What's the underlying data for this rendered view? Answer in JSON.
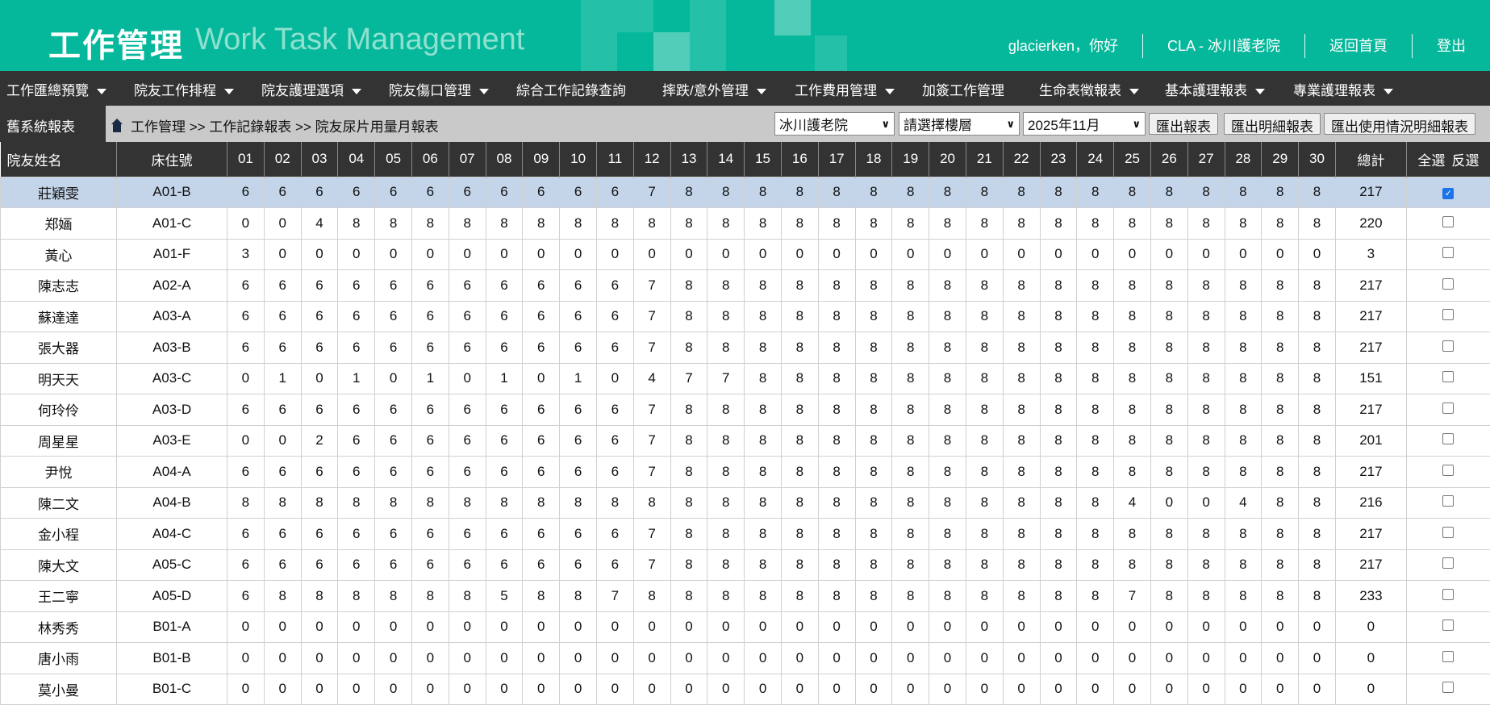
{
  "header": {
    "title_cn": "工作管理",
    "title_en": "Work Task Management",
    "greeting": "glacierken，你好",
    "facility": "CLA - 冰川護老院",
    "home": "返回首頁",
    "logout": "登出",
    "brand_color": "#06b89b"
  },
  "nav": [
    {
      "label": "工作匯總預覽",
      "dropdown": true
    },
    {
      "label": "院友工作排程",
      "dropdown": true
    },
    {
      "label": "院友護理選項",
      "dropdown": true
    },
    {
      "label": "院友傷口管理",
      "dropdown": true
    },
    {
      "label": "綜合工作記錄查詢",
      "dropdown": false
    },
    {
      "label": "摔跌/意外管理",
      "dropdown": true
    },
    {
      "label": "工作費用管理",
      "dropdown": true
    },
    {
      "label": "加簽工作管理",
      "dropdown": false
    },
    {
      "label": "生命表徵報表",
      "dropdown": true
    },
    {
      "label": "基本護理報表",
      "dropdown": true
    },
    {
      "label": "專業護理報表",
      "dropdown": true
    }
  ],
  "toolbar": {
    "old_system": "舊系統報表",
    "breadcrumb": "工作管理 >> 工作記錄報表 >> 院友尿片用量月報表",
    "facility_select": "冰川護老院",
    "floor_select": "請選擇樓層",
    "month_select": "2025年11月",
    "export": "匯出報表",
    "export_detail": "匯出明細報表",
    "export_usage": "匯出使用情況明細報表"
  },
  "table": {
    "col_name": "院友姓名",
    "col_bed": "床住號",
    "days": [
      "01",
      "02",
      "03",
      "04",
      "05",
      "06",
      "07",
      "08",
      "09",
      "10",
      "11",
      "12",
      "13",
      "14",
      "15",
      "16",
      "17",
      "18",
      "19",
      "20",
      "21",
      "22",
      "23",
      "24",
      "25",
      "26",
      "27",
      "28",
      "29",
      "30"
    ],
    "col_total": "總計",
    "select_all": "全選",
    "invert": "反選",
    "rows": [
      {
        "name": "莊穎雯",
        "bed": "A01-B",
        "v": [
          6,
          6,
          6,
          6,
          6,
          6,
          6,
          6,
          6,
          6,
          6,
          7,
          8,
          8,
          8,
          8,
          8,
          8,
          8,
          8,
          8,
          8,
          8,
          8,
          8,
          8,
          8,
          8,
          8,
          8
        ],
        "total": "217",
        "checked": true
      },
      {
        "name": "郑婳",
        "bed": "A01-C",
        "v": [
          0,
          0,
          4,
          8,
          8,
          8,
          8,
          8,
          8,
          8,
          8,
          8,
          8,
          8,
          8,
          8,
          8,
          8,
          8,
          8,
          8,
          8,
          8,
          8,
          8,
          8,
          8,
          8,
          8,
          8
        ],
        "total": "220",
        "checked": false
      },
      {
        "name": "黃心",
        "bed": "A01-F",
        "v": [
          3,
          0,
          0,
          0,
          0,
          0,
          0,
          0,
          0,
          0,
          0,
          0,
          0,
          0,
          0,
          0,
          0,
          0,
          0,
          0,
          0,
          0,
          0,
          0,
          0,
          0,
          0,
          0,
          0,
          0
        ],
        "total": "3",
        "checked": false
      },
      {
        "name": "陳志志",
        "bed": "A02-A",
        "v": [
          6,
          6,
          6,
          6,
          6,
          6,
          6,
          6,
          6,
          6,
          6,
          7,
          8,
          8,
          8,
          8,
          8,
          8,
          8,
          8,
          8,
          8,
          8,
          8,
          8,
          8,
          8,
          8,
          8,
          8
        ],
        "total": "217",
        "checked": false
      },
      {
        "name": "蘇達達",
        "bed": "A03-A",
        "v": [
          6,
          6,
          6,
          6,
          6,
          6,
          6,
          6,
          6,
          6,
          6,
          7,
          8,
          8,
          8,
          8,
          8,
          8,
          8,
          8,
          8,
          8,
          8,
          8,
          8,
          8,
          8,
          8,
          8,
          8
        ],
        "total": "217",
        "checked": false
      },
      {
        "name": "張大器",
        "bed": "A03-B",
        "v": [
          6,
          6,
          6,
          6,
          6,
          6,
          6,
          6,
          6,
          6,
          6,
          7,
          8,
          8,
          8,
          8,
          8,
          8,
          8,
          8,
          8,
          8,
          8,
          8,
          8,
          8,
          8,
          8,
          8,
          8
        ],
        "total": "217",
        "checked": false
      },
      {
        "name": "明天天",
        "bed": "A03-C",
        "v": [
          0,
          1,
          0,
          1,
          0,
          1,
          0,
          1,
          0,
          1,
          0,
          4,
          7,
          7,
          8,
          8,
          8,
          8,
          8,
          8,
          8,
          8,
          8,
          8,
          8,
          8,
          8,
          8,
          8,
          8
        ],
        "total": "151",
        "checked": false
      },
      {
        "name": "何玲伶",
        "bed": "A03-D",
        "v": [
          6,
          6,
          6,
          6,
          6,
          6,
          6,
          6,
          6,
          6,
          6,
          7,
          8,
          8,
          8,
          8,
          8,
          8,
          8,
          8,
          8,
          8,
          8,
          8,
          8,
          8,
          8,
          8,
          8,
          8
        ],
        "total": "217",
        "checked": false
      },
      {
        "name": "周星星",
        "bed": "A03-E",
        "v": [
          0,
          0,
          2,
          6,
          6,
          6,
          6,
          6,
          6,
          6,
          6,
          7,
          8,
          8,
          8,
          8,
          8,
          8,
          8,
          8,
          8,
          8,
          8,
          8,
          8,
          8,
          8,
          8,
          8,
          8
        ],
        "total": "201",
        "checked": false
      },
      {
        "name": "尹悅",
        "bed": "A04-A",
        "v": [
          6,
          6,
          6,
          6,
          6,
          6,
          6,
          6,
          6,
          6,
          6,
          7,
          8,
          8,
          8,
          8,
          8,
          8,
          8,
          8,
          8,
          8,
          8,
          8,
          8,
          8,
          8,
          8,
          8,
          8
        ],
        "total": "217",
        "checked": false
      },
      {
        "name": "陳二文",
        "bed": "A04-B",
        "v": [
          8,
          8,
          8,
          8,
          8,
          8,
          8,
          8,
          8,
          8,
          8,
          8,
          8,
          8,
          8,
          8,
          8,
          8,
          8,
          8,
          8,
          8,
          8,
          8,
          4,
          0,
          0,
          4,
          8,
          8
        ],
        "total": "216",
        "checked": false
      },
      {
        "name": "金小程",
        "bed": "A04-C",
        "v": [
          6,
          6,
          6,
          6,
          6,
          6,
          6,
          6,
          6,
          6,
          6,
          7,
          8,
          8,
          8,
          8,
          8,
          8,
          8,
          8,
          8,
          8,
          8,
          8,
          8,
          8,
          8,
          8,
          8,
          8
        ],
        "total": "217",
        "checked": false
      },
      {
        "name": "陳大文",
        "bed": "A05-C",
        "v": [
          6,
          6,
          6,
          6,
          6,
          6,
          6,
          6,
          6,
          6,
          6,
          7,
          8,
          8,
          8,
          8,
          8,
          8,
          8,
          8,
          8,
          8,
          8,
          8,
          8,
          8,
          8,
          8,
          8,
          8
        ],
        "total": "217",
        "checked": false
      },
      {
        "name": "王二寧",
        "bed": "A05-D",
        "v": [
          6,
          8,
          8,
          8,
          8,
          8,
          8,
          5,
          8,
          8,
          7,
          8,
          8,
          8,
          8,
          8,
          8,
          8,
          8,
          8,
          8,
          8,
          8,
          8,
          7,
          8,
          8,
          8,
          8,
          8
        ],
        "total": "233",
        "checked": false
      },
      {
        "name": "林秀秀",
        "bed": "B01-A",
        "v": [
          0,
          0,
          0,
          0,
          0,
          0,
          0,
          0,
          0,
          0,
          0,
          0,
          0,
          0,
          0,
          0,
          0,
          0,
          0,
          0,
          0,
          0,
          0,
          0,
          0,
          0,
          0,
          0,
          0,
          0
        ],
        "total": "0",
        "checked": false
      },
      {
        "name": "唐小雨",
        "bed": "B01-B",
        "v": [
          0,
          0,
          0,
          0,
          0,
          0,
          0,
          0,
          0,
          0,
          0,
          0,
          0,
          0,
          0,
          0,
          0,
          0,
          0,
          0,
          0,
          0,
          0,
          0,
          0,
          0,
          0,
          0,
          0,
          0
        ],
        "total": "0",
        "checked": false
      },
      {
        "name": "莫小曼",
        "bed": "B01-C",
        "v": [
          0,
          0,
          0,
          0,
          0,
          0,
          0,
          0,
          0,
          0,
          0,
          0,
          0,
          0,
          0,
          0,
          0,
          0,
          0,
          0,
          0,
          0,
          0,
          0,
          0,
          0,
          0,
          0,
          0,
          0
        ],
        "total": "0",
        "checked": false
      }
    ]
  }
}
